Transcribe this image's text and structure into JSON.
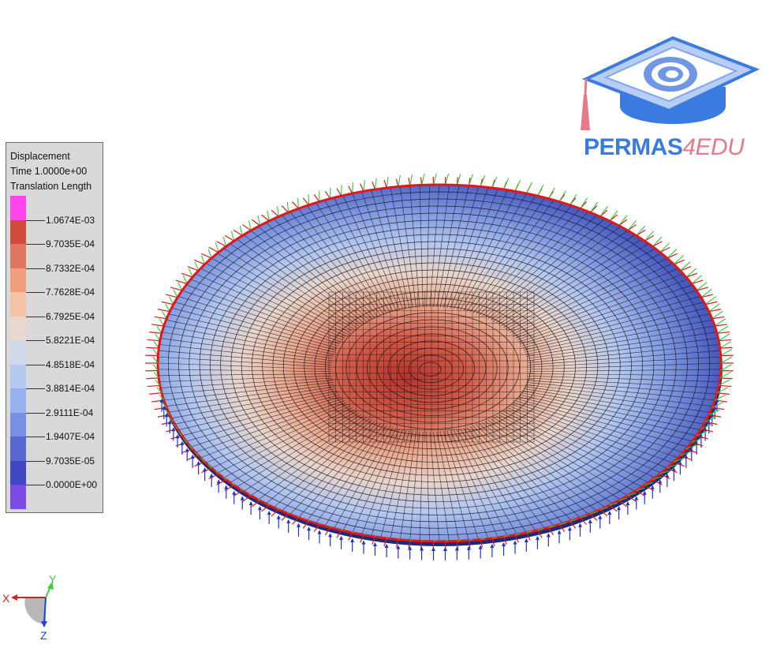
{
  "legend": {
    "line1": "Displacement",
    "line2": "Time 1.0000e+00",
    "line3": "Translation Length",
    "swatches": [
      "#ff44ee",
      "#d14a3c",
      "#e17660",
      "#f19d7c",
      "#f5c2a8",
      "#ead6cc",
      "#cfd9e9",
      "#b4c8f0",
      "#96b0f0",
      "#7890e3",
      "#5869d4",
      "#3f47c2",
      "#7a4be8"
    ],
    "ticks": [
      "1.0674E-03",
      "9.7035E-04",
      "8.7332E-04",
      "7.7628E-04",
      "6.7925E-04",
      "5.8221E-04",
      "4.8518E-04",
      "3.8814E-04",
      "2.9111E-04",
      "1.9407E-04",
      "9.7035E-05",
      "0.0000E+00"
    ]
  },
  "logo": {
    "text_main": "PERMAS",
    "text_accent": "4EDU",
    "icon": "graduation-cap-logo-icon"
  },
  "triad": {
    "x_label": "X",
    "y_label": "Y",
    "z_label": "Z",
    "x_color": "#d62020",
    "y_color": "#3ccf3c",
    "z_color": "#2040e0"
  },
  "plot": {
    "colors": {
      "center": "#c4453a",
      "mid_warm": "#e8b8a0",
      "mid_cool": "#a8c0ee",
      "edge": "#3a4aa8",
      "mesh": "#111111",
      "rim": "#e01818",
      "arrow_red": "#e01818",
      "arrow_green": "#2ccc2c",
      "arrow_blue": "#2030d0"
    }
  }
}
